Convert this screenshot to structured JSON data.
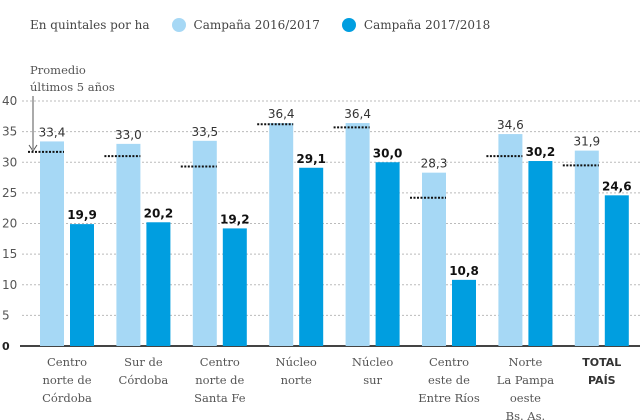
{
  "chart_data": {
    "type": "bar",
    "title": "",
    "unit_label": "En quintales por ha",
    "average_note": [
      "Promedio",
      "últimos 5 años"
    ],
    "categories": [
      [
        "Centro",
        "norte de",
        "Córdoba"
      ],
      [
        "Sur de",
        "Córdoba"
      ],
      [
        "Centro",
        "norte de",
        "Santa Fe"
      ],
      [
        "Núcleo",
        "norte"
      ],
      [
        "Núcleo",
        "sur"
      ],
      [
        "Centro",
        "este de",
        "Entre Ríos"
      ],
      [
        "Norte",
        "La Pampa",
        "oeste",
        "Bs. As."
      ],
      [
        "TOTAL",
        "PAÍS"
      ]
    ],
    "bold_categories": [
      7
    ],
    "series": [
      {
        "name": "Campaña 2016/2017",
        "color": "#a6d8f5",
        "values": [
          33.4,
          33.0,
          33.5,
          36.4,
          36.4,
          28.3,
          34.6,
          31.9
        ],
        "labels": [
          "33,4",
          "33,0",
          "33,5",
          "36,4",
          "36,4",
          "28,3",
          "34,6",
          "31,9"
        ]
      },
      {
        "name": "Campaña 2017/2018",
        "color": "#009ee0",
        "values": [
          19.9,
          20.2,
          19.2,
          29.1,
          30.0,
          10.8,
          30.2,
          24.6
        ],
        "labels": [
          "19,9",
          "20,2",
          "19,2",
          "29,1",
          "30,0",
          "10,8",
          "30,2",
          "24,6"
        ]
      }
    ],
    "five_year_average": [
      31.7,
      31.0,
      29.3,
      36.2,
      35.7,
      24.2,
      31.0,
      29.5
    ],
    "yticks": [
      0,
      5,
      10,
      15,
      20,
      25,
      30,
      35,
      40
    ],
    "ylim": [
      0,
      40
    ],
    "grid": true,
    "legend": "top"
  }
}
